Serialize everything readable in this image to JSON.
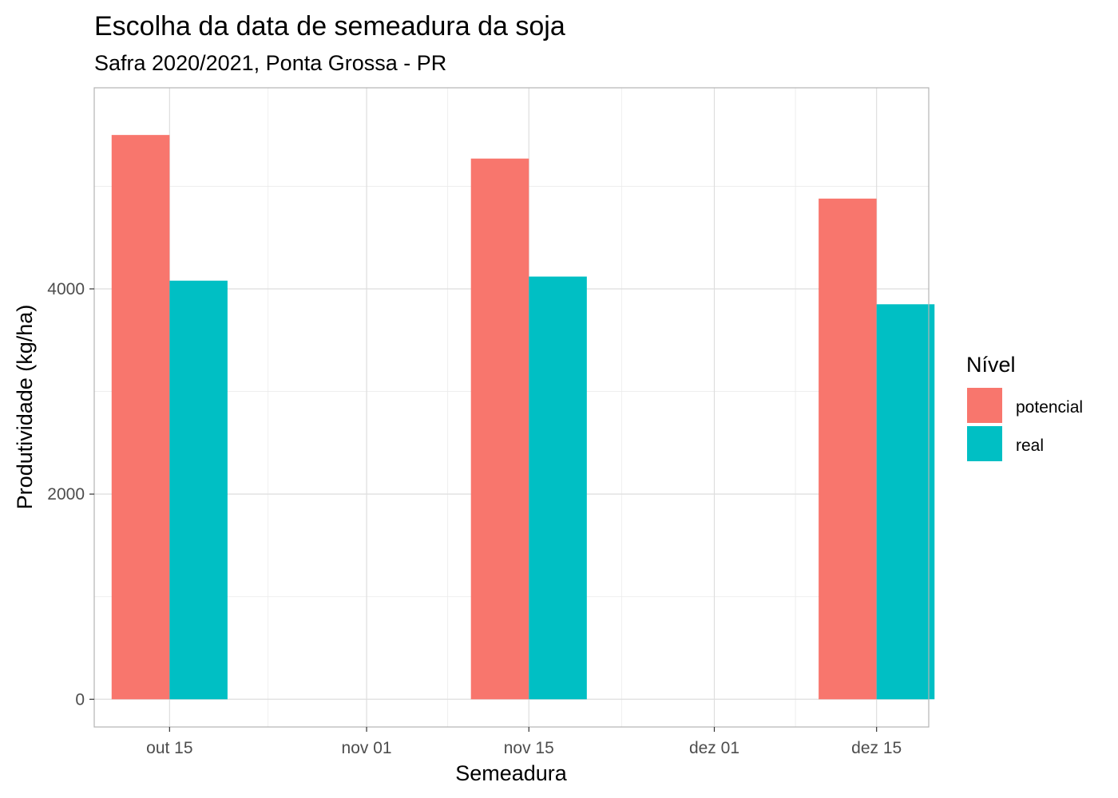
{
  "chart_data": {
    "type": "bar",
    "title": "Escolha da data de semeadura da soja",
    "subtitle": "Safra 2020/2021, Ponta Grossa - PR",
    "xlabel": "Semeadura",
    "ylabel": "Produtividade (kg/ha)",
    "x_tick_labels": [
      "out 15",
      "nov 01",
      "nov 15",
      "dez 01",
      "dez 15"
    ],
    "x_domain_days": [
      -6.5,
      65.5
    ],
    "x_tick_days": [
      0,
      17,
      31,
      47,
      61
    ],
    "bar_width_days": 10,
    "categories": [
      "out 15",
      "nov 15",
      "dez 15"
    ],
    "category_days": [
      0,
      31,
      61
    ],
    "y_ticks": [
      0,
      2000,
      4000
    ],
    "ylim": [
      -270,
      5960
    ],
    "grid": true,
    "legend": {
      "title": "Nível",
      "position": "right"
    },
    "series": [
      {
        "name": "potencial",
        "color": "#F8766D",
        "values": [
          5500,
          5270,
          4880
        ]
      },
      {
        "name": "real",
        "color": "#00BFC4",
        "values": [
          4080,
          4120,
          3850
        ]
      }
    ]
  }
}
